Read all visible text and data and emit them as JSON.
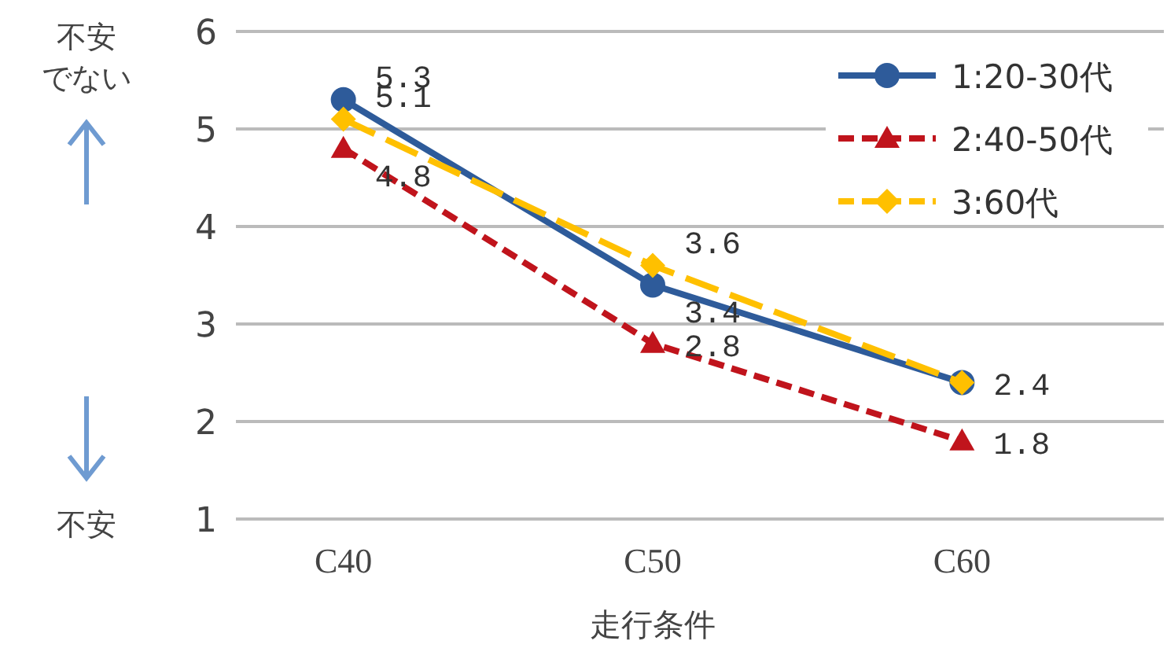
{
  "chart_data": {
    "type": "line",
    "xlabel": "走行条件",
    "categories": [
      "C40",
      "C50",
      "C60"
    ],
    "series": [
      {
        "name": "1:20-30代",
        "color": "#2e5b9a",
        "values": [
          5.3,
          3.4,
          2.4
        ],
        "marker": "circle",
        "line_style": "solid"
      },
      {
        "name": "2:40-50代",
        "color": "#c0141c",
        "values": [
          4.8,
          2.8,
          1.8
        ],
        "marker": "triangle",
        "line_style": "dashed"
      },
      {
        "name": "3:60代",
        "color": "#ffc000",
        "values": [
          5.1,
          3.6,
          2.4
        ],
        "value_labels": [
          "5.1",
          "3.6",
          null
        ],
        "marker": "diamond",
        "line_style": "dashed"
      }
    ],
    "ylim": [
      1,
      6
    ],
    "yticks": [
      1,
      2,
      3,
      4,
      5,
      6
    ],
    "grid": "y",
    "legend": "top right",
    "data_labels": true,
    "annotations": [
      "不安でない",
      "不安"
    ]
  }
}
